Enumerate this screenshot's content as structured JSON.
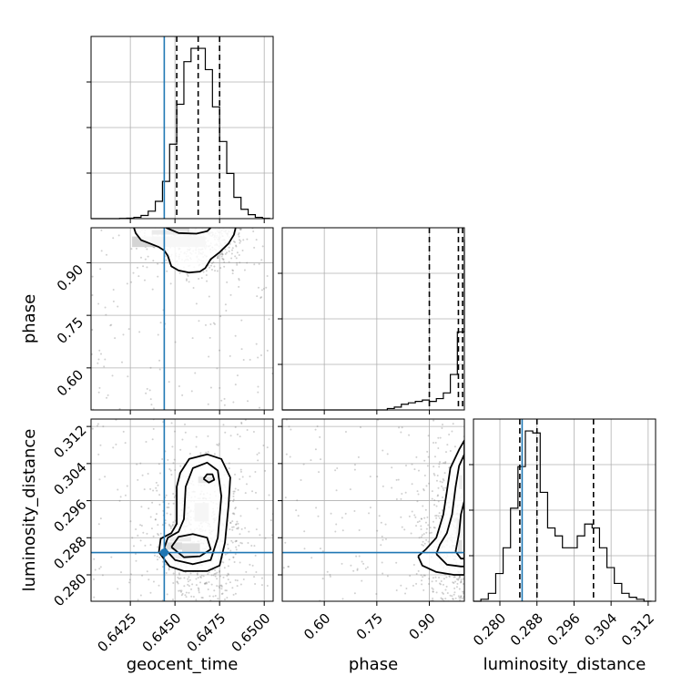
{
  "chart_data": {
    "type": "corner",
    "truth_color": "#1f77b4",
    "params": [
      "geocent_time",
      "phase",
      "luminosity_distance"
    ],
    "xlabels": [
      "geocent_time",
      "phase",
      "luminosity_distance"
    ],
    "ylabels": [
      "phase",
      "luminosity_distance"
    ],
    "axes": {
      "geocent_time": {
        "range": [
          0.6403,
          0.6505
        ],
        "ticks": [
          0.6425,
          0.645,
          0.6475,
          0.65
        ],
        "tick_labels": [
          "0.6425",
          "0.6450",
          "0.6475",
          "0.6500"
        ]
      },
      "phase": {
        "range": [
          0.48,
          1.0
        ],
        "ticks": [
          0.6,
          0.75,
          0.9
        ],
        "tick_labels": [
          "0.60",
          "0.75",
          "0.90"
        ]
      },
      "luminosity_distance": {
        "range": [
          0.2743,
          0.3136
        ],
        "ticks": [
          0.28,
          0.288,
          0.296,
          0.304,
          0.312
        ],
        "tick_labels": [
          "0.280",
          "0.288",
          "0.296",
          "0.304",
          "0.312"
        ]
      }
    },
    "truths": {
      "geocent_time": 0.6444,
      "phase": null,
      "luminosity_distance": 0.2848
    },
    "histograms": [
      {
        "param": "geocent_time",
        "quantiles": [
          0.6451,
          0.6463,
          0.6475
        ],
        "bin_edges": [
          0.6403,
          0.6407,
          0.6411,
          0.6415,
          0.6419,
          0.6423,
          0.6427,
          0.6431,
          0.6435,
          0.6439,
          0.6443,
          0.6447,
          0.6451,
          0.6455,
          0.6459,
          0.6463,
          0.6467,
          0.6471,
          0.6475,
          0.6479,
          0.6483,
          0.6487,
          0.6491,
          0.6495,
          0.6499,
          0.6503
        ],
        "counts": [
          0,
          0,
          0,
          0,
          1,
          2,
          5,
          12,
          28,
          65,
          140,
          280,
          430,
          590,
          640,
          640,
          560,
          420,
          290,
          170,
          80,
          35,
          15,
          5,
          1
        ]
      },
      {
        "param": "phase",
        "quantiles": [
          0.9,
          0.983,
          0.995
        ],
        "bin_edges": [
          0.48,
          0.5,
          0.52,
          0.54,
          0.56,
          0.58,
          0.6,
          0.62,
          0.64,
          0.66,
          0.68,
          0.7,
          0.72,
          0.74,
          0.76,
          0.78,
          0.8,
          0.82,
          0.84,
          0.86,
          0.88,
          0.9,
          0.92,
          0.94,
          0.96,
          0.98,
          1.0
        ],
        "counts": [
          0,
          0,
          0,
          0,
          0,
          0,
          0,
          0,
          0,
          0,
          0,
          0,
          0,
          0,
          0,
          1,
          2,
          4,
          5,
          6,
          7,
          6,
          8,
          12,
          25,
          55,
          120
        ]
      },
      {
        "param": "luminosity_distance",
        "quantiles": [
          0.2843,
          0.288,
          0.3002
        ],
        "bin_edges": [
          0.2743,
          0.2759,
          0.2775,
          0.2791,
          0.2807,
          0.2823,
          0.2839,
          0.2855,
          0.2871,
          0.2887,
          0.2903,
          0.2919,
          0.2935,
          0.2951,
          0.2967,
          0.2983,
          0.2999,
          0.3015,
          0.3031,
          0.3047,
          0.3063,
          0.3079,
          0.3095,
          0.3111,
          0.3127
        ],
        "counts": [
          0,
          1,
          4,
          14,
          27,
          47,
          68,
          86,
          85,
          55,
          37,
          33,
          27,
          27,
          33,
          39,
          37,
          27,
          17,
          9,
          4,
          2,
          1,
          0
        ]
      }
    ],
    "contours": [
      {
        "x": "geocent_time",
        "y": "phase",
        "levels": [
          [
            [
              0.6427,
              1.0
            ],
            [
              0.6428,
              0.985
            ],
            [
              0.6431,
              0.965
            ],
            [
              0.6436,
              0.955
            ],
            [
              0.6441,
              0.945
            ],
            [
              0.6444,
              0.935
            ],
            [
              0.6446,
              0.92
            ],
            [
              0.6448,
              0.89
            ],
            [
              0.6452,
              0.878
            ],
            [
              0.6458,
              0.872
            ],
            [
              0.6464,
              0.875
            ],
            [
              0.6467,
              0.885
            ],
            [
              0.647,
              0.91
            ],
            [
              0.6475,
              0.93
            ],
            [
              0.648,
              0.955
            ],
            [
              0.6483,
              0.98
            ],
            [
              0.6484,
              1.0
            ]
          ],
          [
            [
              0.6445,
              1.0
            ],
            [
              0.6452,
              0.985
            ],
            [
              0.6462,
              0.983
            ],
            [
              0.6468,
              0.99
            ],
            [
              0.647,
              1.0
            ]
          ]
        ]
      },
      {
        "x": "geocent_time",
        "y": "luminosity_distance",
        "levels": [
          [
            [
              0.6441,
              0.2849
            ],
            [
              0.6442,
              0.2878
            ],
            [
              0.6448,
              0.289
            ],
            [
              0.6451,
              0.291
            ],
            [
              0.6451,
              0.299
            ],
            [
              0.6453,
              0.302
            ],
            [
              0.6458,
              0.305
            ],
            [
              0.6468,
              0.306
            ],
            [
              0.6476,
              0.305
            ],
            [
              0.6481,
              0.301
            ],
            [
              0.648,
              0.295
            ],
            [
              0.6478,
              0.287
            ],
            [
              0.6475,
              0.282
            ],
            [
              0.6468,
              0.2808
            ],
            [
              0.6455,
              0.2808
            ],
            [
              0.6447,
              0.2818
            ],
            [
              0.6441,
              0.2849
            ]
          ],
          [
            [
              0.6444,
              0.2858
            ],
            [
              0.6446,
              0.288
            ],
            [
              0.6452,
              0.2893
            ],
            [
              0.6455,
              0.292
            ],
            [
              0.6456,
              0.299
            ],
            [
              0.646,
              0.303
            ],
            [
              0.6468,
              0.3042
            ],
            [
              0.6474,
              0.3025
            ],
            [
              0.6476,
              0.297
            ],
            [
              0.6474,
              0.288
            ],
            [
              0.647,
              0.2832
            ],
            [
              0.646,
              0.2823
            ],
            [
              0.645,
              0.2832
            ],
            [
              0.6444,
              0.2858
            ]
          ],
          [
            [
              0.6448,
              0.286
            ],
            [
              0.6452,
              0.2882
            ],
            [
              0.646,
              0.2888
            ],
            [
              0.6468,
              0.288
            ],
            [
              0.647,
              0.2855
            ],
            [
              0.6464,
              0.284
            ],
            [
              0.6455,
              0.2838
            ],
            [
              0.6448,
              0.286
            ]
          ],
          [
            [
              0.6466,
              0.3007
            ],
            [
              0.6468,
              0.3017
            ],
            [
              0.6471,
              0.3017
            ],
            [
              0.6472,
              0.3005
            ],
            [
              0.6469,
              0.2999
            ],
            [
              0.6466,
              0.3007
            ]
          ]
        ]
      },
      {
        "x": "phase",
        "y": "luminosity_distance",
        "levels": [
          [
            [
              0.868,
              0.284
            ],
            [
              0.88,
              0.282
            ],
            [
              0.92,
              0.2806
            ],
            [
              0.97,
              0.28
            ],
            [
              1.0,
              0.28
            ],
            [
              1.0,
              0.309
            ],
            [
              0.985,
              0.307
            ],
            [
              0.96,
              0.303
            ],
            [
              0.95,
              0.298
            ],
            [
              0.94,
              0.293
            ],
            [
              0.92,
              0.288
            ],
            [
              0.89,
              0.2855
            ],
            [
              0.868,
              0.284
            ]
          ],
          [
            [
              0.92,
              0.2845
            ],
            [
              0.95,
              0.2822
            ],
            [
              0.99,
              0.2818
            ],
            [
              1.0,
              0.2818
            ],
            [
              1.0,
              0.306
            ],
            [
              0.985,
              0.3035
            ],
            [
              0.975,
              0.299
            ],
            [
              0.965,
              0.293
            ],
            [
              0.95,
              0.289
            ],
            [
              0.93,
              0.2865
            ],
            [
              0.92,
              0.2845
            ]
          ],
          [
            [
              0.975,
              0.285
            ],
            [
              0.99,
              0.2835
            ],
            [
              1.0,
              0.2835
            ],
            [
              1.0,
              0.296
            ],
            [
              0.99,
              0.293
            ],
            [
              0.985,
              0.289
            ],
            [
              0.975,
              0.285
            ]
          ]
        ]
      }
    ],
    "density_blocks": [
      {
        "x": "geocent_time",
        "y": "phase",
        "cells": [
          [
            0.6452,
            0.9935,
            0.0012,
            0.013,
            1.0
          ],
          [
            0.6447,
            0.987,
            0.002,
            0.013,
            0.55
          ],
          [
            0.6441,
            0.96,
            0.003,
            0.03,
            0.18
          ],
          [
            0.6452,
            0.96,
            0.003,
            0.03,
            0.22
          ]
        ]
      },
      {
        "x": "geocent_time",
        "y": "luminosity_distance",
        "cells": [
          [
            0.6449,
            0.2862,
            0.001,
            0.0016,
            0.95
          ],
          [
            0.6459,
            0.2858,
            0.001,
            0.002,
            0.85
          ],
          [
            0.6453,
            0.2877,
            0.0012,
            0.001,
            0.55
          ],
          [
            0.6455,
            0.284,
            0.0015,
            0.001,
            0.45
          ],
          [
            0.6467,
            0.3005,
            0.0008,
            0.0014,
            0.6
          ],
          [
            0.6465,
            0.2935,
            0.0008,
            0.004,
            0.25
          ]
        ]
      },
      {
        "x": "phase",
        "y": "luminosity_distance",
        "cells": [
          [
            0.988,
            0.286,
            0.012,
            0.003,
            0.95
          ],
          [
            0.985,
            0.29,
            0.015,
            0.004,
            0.4
          ],
          [
            0.99,
            0.3,
            0.01,
            0.003,
            0.5
          ]
        ]
      }
    ]
  }
}
